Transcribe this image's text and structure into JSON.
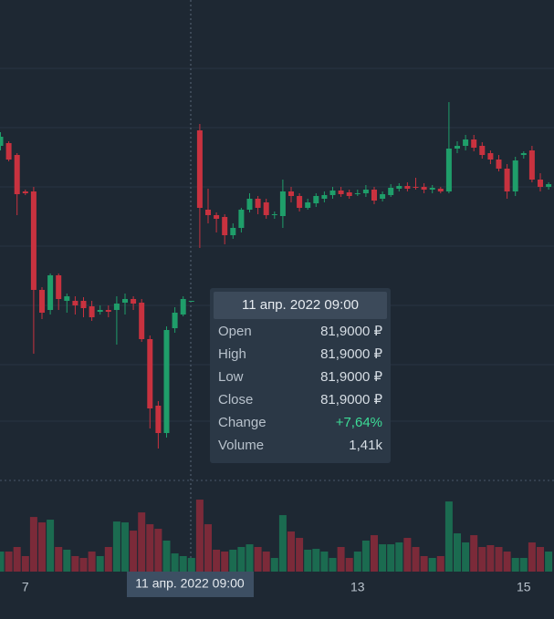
{
  "chart_data": {
    "type": "candlestick",
    "categories": [
      null,
      null,
      null,
      "7",
      null,
      null,
      null,
      null,
      null,
      null,
      null,
      null,
      null,
      null,
      null,
      null,
      null,
      null,
      null,
      null,
      null,
      null,
      null,
      null,
      null,
      null,
      null,
      null,
      null,
      null,
      null,
      null,
      null,
      null,
      null,
      null,
      null,
      null,
      null,
      null,
      null,
      null,
      null,
      "13",
      null,
      null,
      null,
      null,
      null,
      null,
      null,
      null,
      null,
      null,
      null,
      null,
      null,
      null,
      null,
      null,
      null,
      null,
      null,
      "15",
      null,
      null,
      null
    ],
    "open": [
      85.3,
      85.36,
      85.1,
      84.3,
      84.3,
      82.14,
      81.7,
      82.46,
      81.9,
      81.9,
      81.9,
      81.78,
      81.66,
      81.7,
      81.7,
      81.86,
      81.94,
      81.86,
      81.06,
      79.6,
      79.0,
      81.3,
      81.6,
      81.9,
      85.64,
      83.9,
      83.78,
      83.74,
      83.34,
      83.5,
      83.9,
      84.14,
      84.06,
      83.78,
      83.76,
      84.3,
      84.2,
      83.94,
      84.04,
      84.14,
      84.22,
      84.32,
      84.28,
      84.24,
      84.26,
      84.34,
      84.14,
      84.22,
      84.36,
      84.42,
      84.4,
      84.4,
      84.34,
      84.36,
      84.3,
      85.24,
      85.3,
      85.44,
      85.3,
      85.14,
      85.0,
      84.8,
      84.3,
      85.1,
      85.2,
      84.56,
      84.4
    ],
    "high": [
      85.6,
      85.4,
      85.14,
      84.34,
      84.4,
      82.2,
      82.5,
      82.5,
      82.06,
      82.0,
      81.98,
      81.9,
      81.8,
      81.8,
      82.0,
      82.06,
      82.0,
      81.94,
      81.14,
      79.7,
      81.34,
      81.76,
      82.0,
      81.9,
      85.78,
      84.36,
      83.84,
      83.8,
      83.6,
      83.94,
      84.26,
      84.2,
      84.14,
      83.86,
      84.56,
      84.4,
      84.26,
      84.14,
      84.26,
      84.3,
      84.4,
      84.4,
      84.34,
      84.34,
      84.44,
      84.4,
      84.3,
      84.46,
      84.48,
      84.5,
      84.6,
      84.48,
      84.44,
      84.4,
      86.26,
      85.4,
      85.54,
      85.54,
      85.38,
      85.2,
      85.1,
      84.9,
      85.06,
      85.18,
      85.3,
      84.7,
      84.5
    ],
    "low": [
      85.2,
      84.96,
      83.78,
      84.22,
      80.74,
      81.5,
      81.6,
      81.7,
      81.64,
      81.6,
      81.54,
      81.46,
      81.6,
      81.54,
      80.94,
      81.6,
      81.7,
      81.0,
      79.1,
      78.66,
      78.9,
      81.2,
      81.56,
      81.9,
      83.06,
      83.6,
      83.4,
      83.14,
      83.26,
      83.4,
      83.84,
      83.8,
      83.7,
      83.7,
      83.5,
      84.06,
      83.86,
      83.9,
      83.96,
      84.06,
      84.14,
      84.18,
      84.14,
      84.2,
      84.18,
      84.02,
      84.08,
      84.18,
      84.3,
      84.3,
      84.34,
      84.26,
      84.26,
      84.26,
      84.26,
      85.14,
      85.2,
      85.18,
      85.02,
      84.9,
      84.74,
      84.14,
      84.2,
      85.02,
      84.5,
      84.3,
      84.34
    ],
    "close": [
      85.5,
      85.0,
      84.24,
      84.26,
      82.14,
      81.64,
      82.46,
      81.94,
      82.0,
      81.8,
      81.74,
      81.54,
      81.7,
      81.66,
      81.84,
      81.94,
      81.84,
      81.06,
      79.54,
      79.0,
      81.26,
      81.64,
      81.94,
      81.9,
      83.94,
      83.78,
      83.7,
      83.34,
      83.5,
      83.9,
      84.14,
      83.94,
      83.78,
      83.8,
      84.3,
      84.2,
      83.94,
      84.06,
      84.2,
      84.22,
      84.32,
      84.24,
      84.2,
      84.26,
      84.34,
      84.1,
      84.24,
      84.38,
      84.42,
      84.36,
      84.38,
      84.34,
      84.38,
      84.3,
      85.24,
      85.3,
      85.44,
      85.26,
      85.1,
      85.0,
      84.8,
      84.3,
      84.98,
      85.14,
      84.56,
      84.4,
      84.46
    ],
    "volume": [
      2070,
      2070,
      2540,
      1600,
      5640,
      5080,
      5360,
      2540,
      2260,
      1600,
      1410,
      2070,
      1600,
      2540,
      5170,
      5080,
      4230,
      6110,
      4890,
      4420,
      3200,
      1880,
      1600,
      1410,
      7430,
      4890,
      2260,
      2070,
      2260,
      2540,
      2820,
      2540,
      2070,
      1410,
      5830,
      4140,
      3480,
      2260,
      2350,
      2070,
      1410,
      2540,
      1410,
      2070,
      3200,
      3760,
      2820,
      2820,
      3010,
      3480,
      2540,
      1600,
      1410,
      1600,
      7240,
      3950,
      3010,
      3760,
      2540,
      2730,
      2540,
      2070,
      1410,
      1410,
      3010,
      2540,
      2070
    ],
    "ylim": [
      78,
      88.5
    ],
    "y2lim": [
      0,
      8000
    ],
    "up_color": "#1f9e6a",
    "down_color": "#c8323f",
    "up_volume_color": "#1b6b50",
    "down_volume_color": "#7b2a39",
    "crosshair_label": "11 апр. 2022 09:00",
    "tooltip": {
      "title": "11 апр. 2022 09:00",
      "rows": [
        {
          "label": "Open",
          "value": "81,9000 ₽"
        },
        {
          "label": "High",
          "value": "81,9000 ₽"
        },
        {
          "label": "Low",
          "value": "81,9000 ₽"
        },
        {
          "label": "Close",
          "value": "81,9000 ₽"
        },
        {
          "label": "Change",
          "value": "+7,64%"
        },
        {
          "label": "Volume",
          "value": "1,41k"
        }
      ]
    }
  }
}
